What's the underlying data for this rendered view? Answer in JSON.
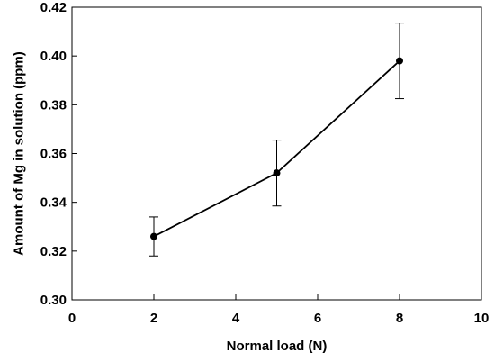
{
  "chart_data": {
    "type": "line",
    "title": "",
    "xlabel": "Normal load (N)",
    "ylabel": "Amount of Mg in solution (ppm)",
    "xlim": [
      0,
      10
    ],
    "ylim": [
      0.3,
      0.42
    ],
    "x_ticks": [
      "0",
      "2",
      "4",
      "6",
      "8",
      "10"
    ],
    "y_ticks": [
      "0.30",
      "0.32",
      "0.34",
      "0.36",
      "0.38",
      "0.40",
      "0.42"
    ],
    "grid": false,
    "legend": "none",
    "series": [
      {
        "x": [
          2,
          5,
          8
        ],
        "y": [
          0.326,
          0.352,
          0.398
        ],
        "error": [
          0.008,
          0.0135,
          0.0155
        ],
        "color": "#000000",
        "marker": "circle"
      }
    ]
  }
}
